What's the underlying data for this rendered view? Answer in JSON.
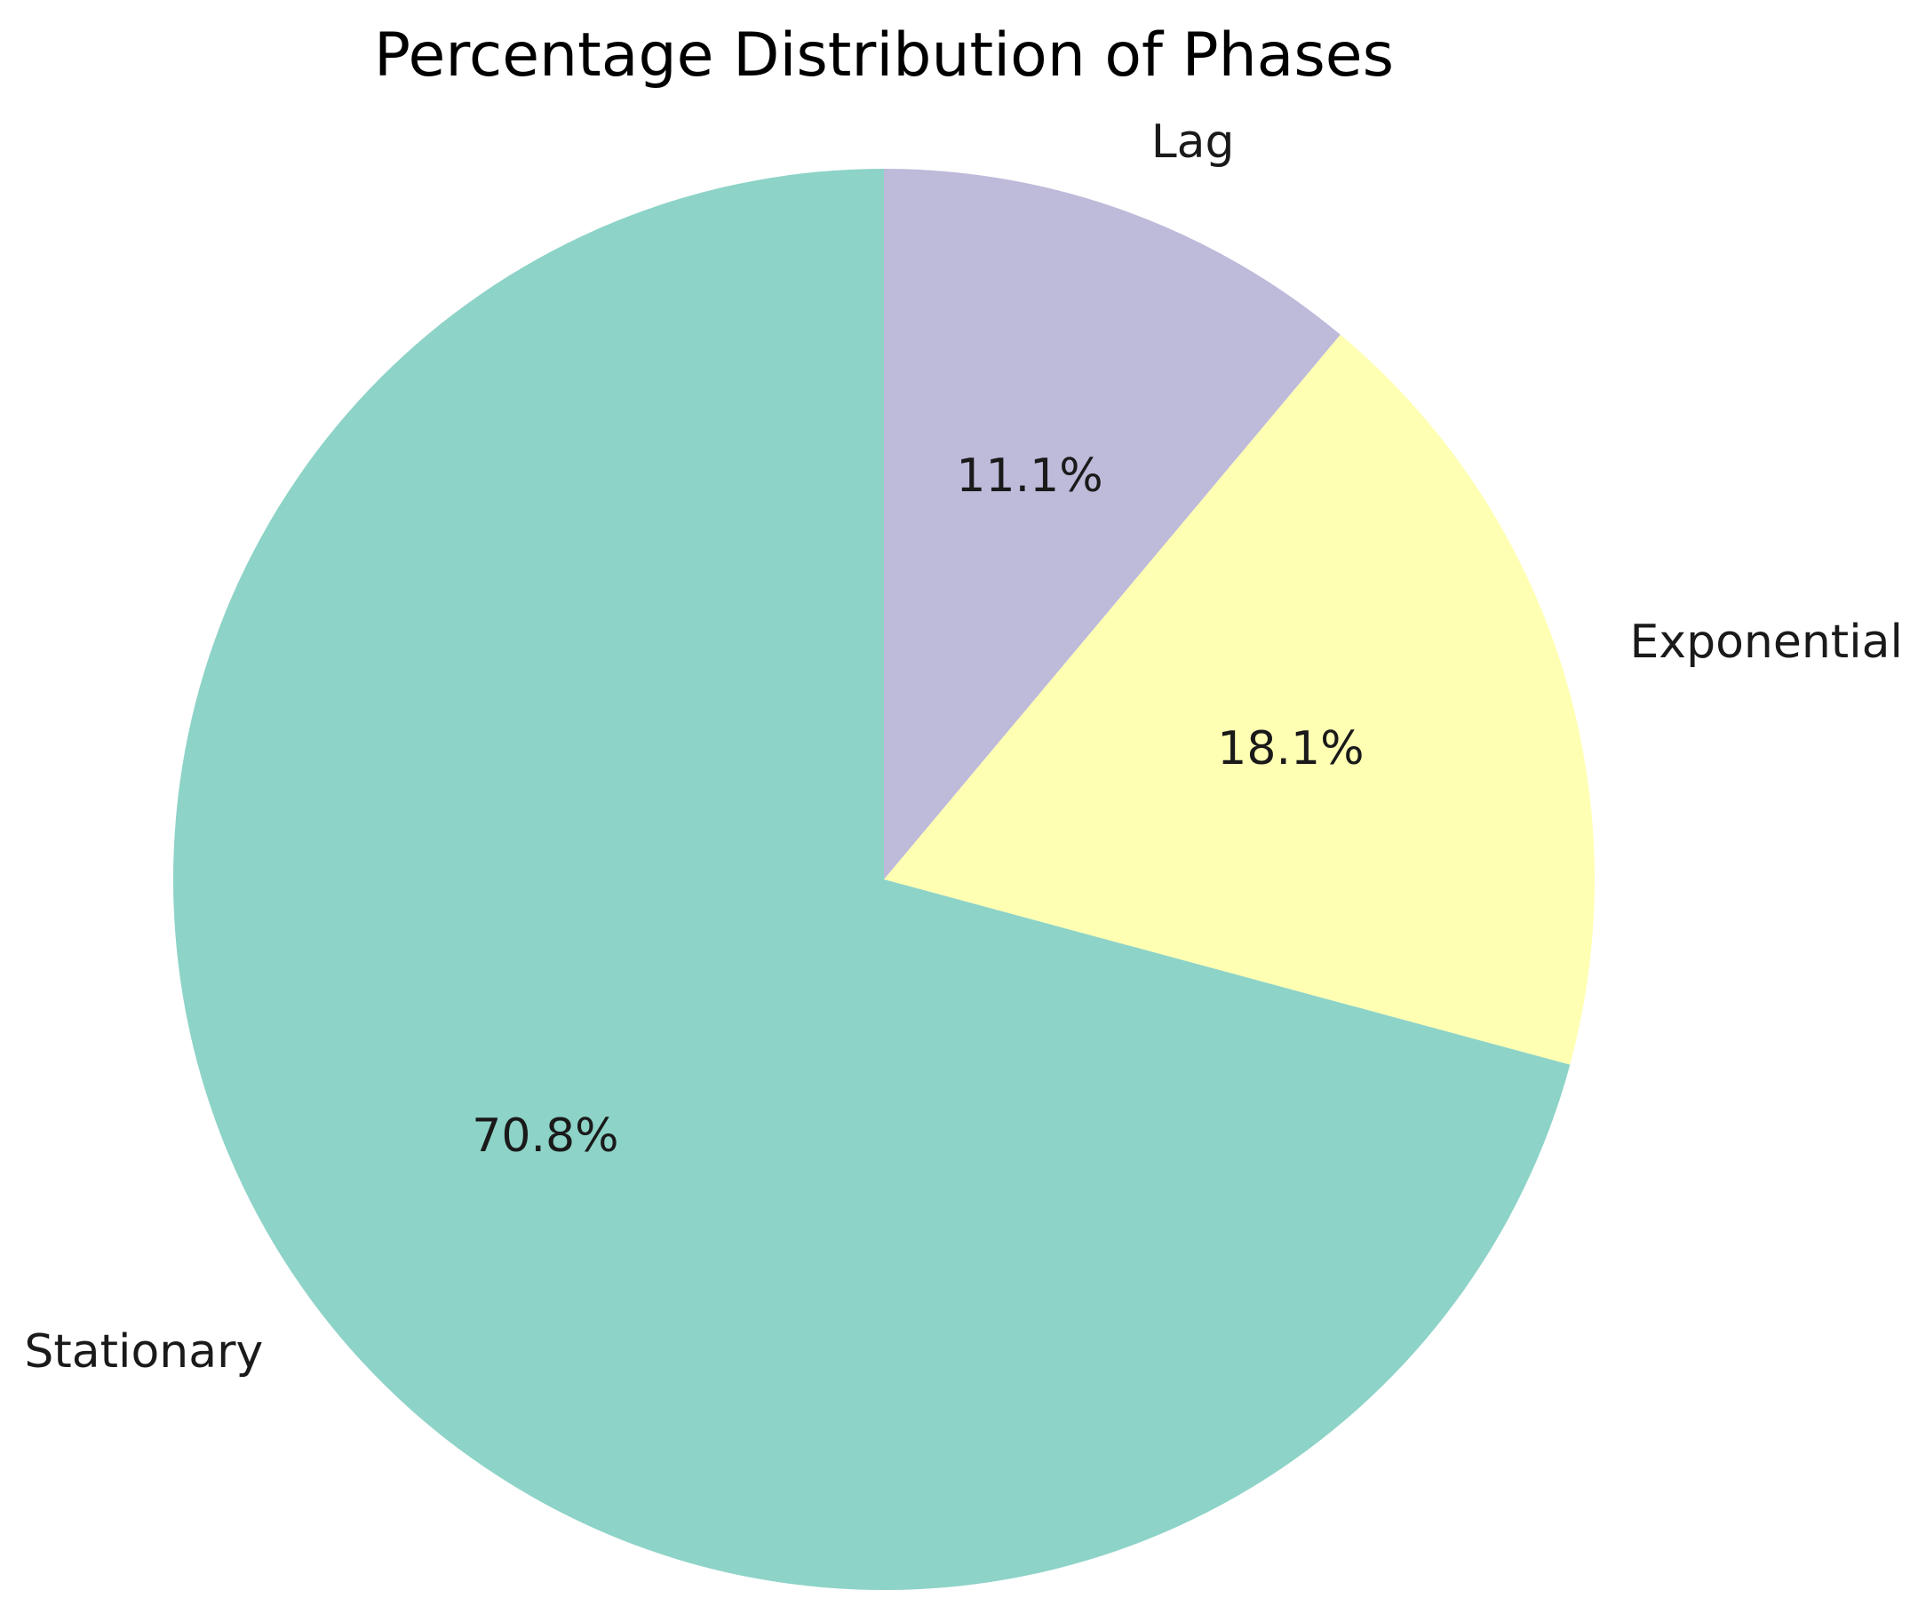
{
  "chart_data": {
    "type": "pie",
    "title": "Percentage Distribution of Phases",
    "categories": [
      "Lag",
      "Exponential",
      "Stationary"
    ],
    "values": [
      11.1,
      18.1,
      70.8
    ],
    "value_labels": [
      "11.1%",
      "18.1%",
      "70.8%"
    ],
    "colors": [
      "#bebada",
      "#ffffb3",
      "#8dd3c7"
    ],
    "start_angle_deg": 90,
    "direction": "clockwise",
    "legend": "none"
  }
}
